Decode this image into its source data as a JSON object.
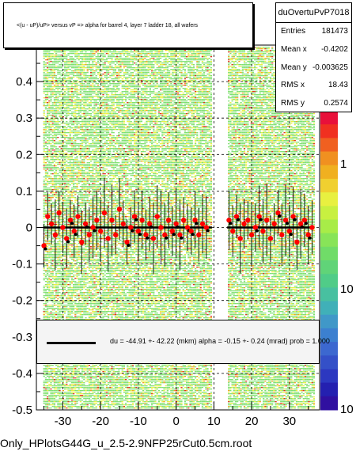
{
  "title": "<(u - uP)/uP> versus   vP => alpha for barrel 4, layer 7 ladder 18, all wafers",
  "stats": {
    "name": "duOvertuPvP7018",
    "rows": [
      {
        "label": "Entries",
        "value": "181473"
      },
      {
        "label": "Mean x",
        "value": "-0.4202"
      },
      {
        "label": "Mean y",
        "value": "-0.003625"
      },
      {
        "label": "RMS x",
        "value": "18.43"
      },
      {
        "label": "RMS y",
        "value": "0.2574"
      }
    ]
  },
  "fit_label": "du =  -44.91 +- 42.22 (mkm) alpha =   -0.15 +-  0.24 (mrad) prob = 1.000",
  "footer": "Only_HPlotsG44G_u_2.5-2.9NFP25rCut0.5cm.root",
  "colors": {
    "heat_green": "#7fe070",
    "heat_yellow": "#e8f040",
    "heat_orange": "#f0a020",
    "heat_red": "#e03020",
    "profile": "#ff0000",
    "fit": "#000000"
  },
  "chart_data": {
    "type": "heatmap",
    "xlim": [
      -37,
      38
    ],
    "ylim": [
      -0.5,
      0.5
    ],
    "x_ticks": [
      -30,
      -20,
      -10,
      0,
      10,
      20,
      30
    ],
    "y_ticks": [
      -0.5,
      -0.4,
      -0.3,
      -0.2,
      -0.1,
      0,
      0.1,
      0.2,
      0.3,
      0.4
    ],
    "y_tick_labels": [
      "-0.5",
      "-0.4",
      "-0.3",
      "-0.2",
      "-0.1",
      "0",
      "0.1",
      "0.2",
      "0.3",
      "0.4"
    ],
    "x_tick_labels": [
      "-30",
      "-20",
      "-10",
      "0",
      "10",
      "20",
      "30"
    ],
    "gap_x": [
      9.5,
      13.5
    ],
    "colorbar": {
      "scale": "log",
      "labels": [
        "1",
        "10",
        "10"
      ]
    },
    "fit": {
      "du_mkm": -44.91,
      "alpha_mrad": -0.15
    },
    "profile_points": [
      {
        "x": -35,
        "y": -0.05
      },
      {
        "x": -34,
        "y": 0.03
      },
      {
        "x": -33,
        "y": 0.01
      },
      {
        "x": -32,
        "y": -0.02
      },
      {
        "x": -31,
        "y": 0.04
      },
      {
        "x": -30,
        "y": 0.0
      },
      {
        "x": -29,
        "y": -0.03
      },
      {
        "x": -28,
        "y": 0.02
      },
      {
        "x": -27,
        "y": -0.01
      },
      {
        "x": -26,
        "y": 0.03
      },
      {
        "x": -25,
        "y": -0.04
      },
      {
        "x": -24,
        "y": 0.01
      },
      {
        "x": -23,
        "y": -0.02
      },
      {
        "x": -22,
        "y": 0.0
      },
      {
        "x": -21,
        "y": 0.02
      },
      {
        "x": -20,
        "y": -0.01
      },
      {
        "x": -19,
        "y": 0.04
      },
      {
        "x": -18,
        "y": -0.03
      },
      {
        "x": -17,
        "y": 0.02
      },
      {
        "x": -16,
        "y": -0.02
      },
      {
        "x": -15,
        "y": 0.05
      },
      {
        "x": -14,
        "y": 0.01
      },
      {
        "x": -13,
        "y": -0.04
      },
      {
        "x": -12,
        "y": 0.0
      },
      {
        "x": -11,
        "y": 0.03
      },
      {
        "x": -10,
        "y": -0.01
      },
      {
        "x": -9,
        "y": 0.02
      },
      {
        "x": -8,
        "y": -0.02
      },
      {
        "x": -7,
        "y": 0.01
      },
      {
        "x": -6,
        "y": -0.03
      },
      {
        "x": -5,
        "y": 0.03
      },
      {
        "x": -4,
        "y": 0.0
      },
      {
        "x": -3,
        "y": -0.02
      },
      {
        "x": -2,
        "y": 0.02
      },
      {
        "x": -1,
        "y": -0.01
      },
      {
        "x": 0,
        "y": 0.01
      },
      {
        "x": 1,
        "y": -0.02
      },
      {
        "x": 2,
        "y": 0.02
      },
      {
        "x": 3,
        "y": 0.0
      },
      {
        "x": 4,
        "y": -0.01
      },
      {
        "x": 5,
        "y": 0.02
      },
      {
        "x": 6,
        "y": -0.02
      },
      {
        "x": 7,
        "y": 0.01
      },
      {
        "x": 8,
        "y": 0.0
      },
      {
        "x": 14,
        "y": 0.02
      },
      {
        "x": 15,
        "y": -0.01
      },
      {
        "x": 16,
        "y": 0.03
      },
      {
        "x": 17,
        "y": -0.03
      },
      {
        "x": 18,
        "y": 0.01
      },
      {
        "x": 19,
        "y": 0.02
      },
      {
        "x": 20,
        "y": -0.02
      },
      {
        "x": 21,
        "y": 0.0
      },
      {
        "x": 22,
        "y": 0.03
      },
      {
        "x": 23,
        "y": -0.01
      },
      {
        "x": 24,
        "y": 0.02
      },
      {
        "x": 25,
        "y": -0.03
      },
      {
        "x": 26,
        "y": 0.01
      },
      {
        "x": 27,
        "y": 0.04
      },
      {
        "x": 28,
        "y": -0.02
      },
      {
        "x": 29,
        "y": 0.02
      },
      {
        "x": 30,
        "y": -0.01
      },
      {
        "x": 31,
        "y": 0.03
      },
      {
        "x": 32,
        "y": -0.04
      },
      {
        "x": 33,
        "y": 0.01
      },
      {
        "x": 34,
        "y": 0.02
      },
      {
        "x": 35,
        "y": -0.02
      },
      {
        "x": 36,
        "y": 0.0
      }
    ]
  }
}
